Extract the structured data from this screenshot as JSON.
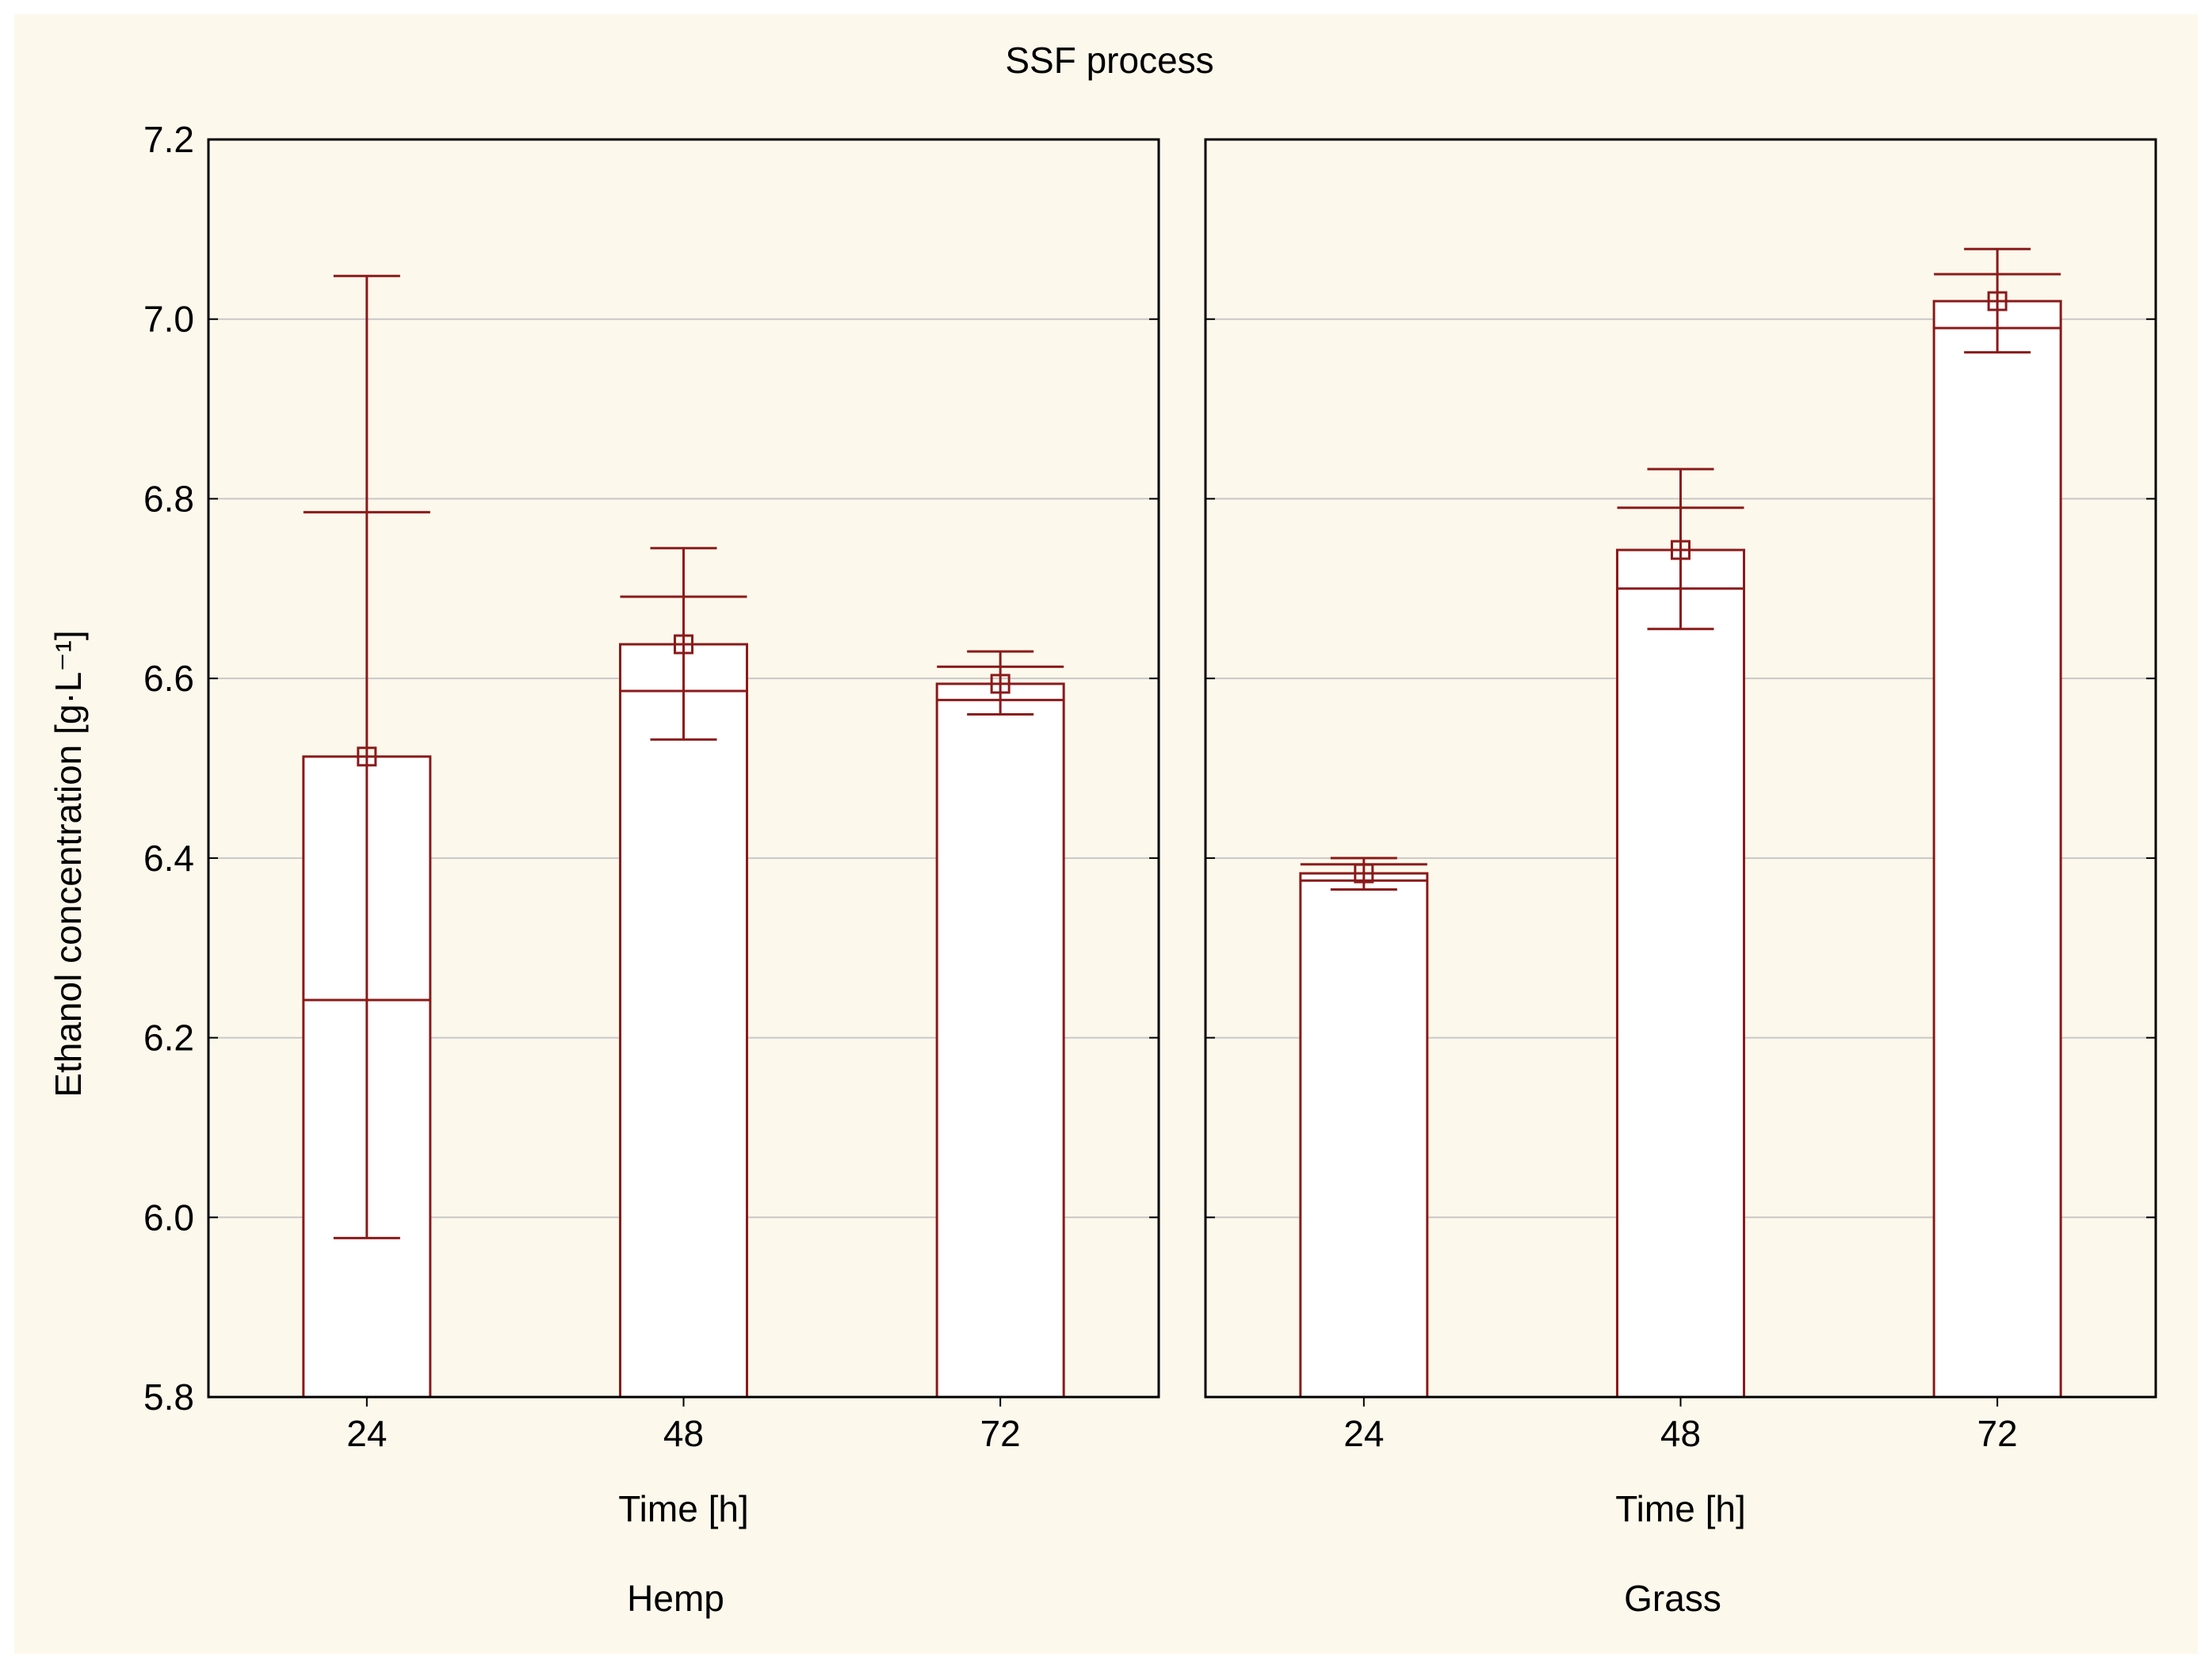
{
  "chart_data": {
    "type": "bar",
    "title": "SSF process",
    "ylabel": "Ethanol concentration [g·L⁻¹]",
    "ylim": [
      5.8,
      7.2
    ],
    "yticks": [
      "7.2",
      "7.0",
      "6.8",
      "6.6",
      "6.4",
      "6.2",
      "6.0",
      "5.8"
    ],
    "ytick_values": [
      7.2,
      7.0,
      6.8,
      6.6,
      6.4,
      6.2,
      6.0,
      5.8
    ],
    "grid": true,
    "panels": [
      {
        "group_label": "Hemp",
        "xlabel": "Time [h]",
        "categories": [
          "24",
          "48",
          "72"
        ],
        "values": [
          6.513,
          6.638,
          6.594
        ],
        "se_low": [
          6.242,
          6.586,
          6.576
        ],
        "se_high": [
          6.785,
          6.691,
          6.613
        ],
        "ci_low": [
          5.977,
          6.532,
          6.56
        ],
        "ci_high": [
          7.048,
          6.745,
          6.63
        ]
      },
      {
        "group_label": "Grass",
        "xlabel": "Time [h]",
        "categories": [
          "24",
          "48",
          "72"
        ],
        "values": [
          6.383,
          6.743,
          7.02
        ],
        "se_low": [
          6.375,
          6.7,
          6.99
        ],
        "se_high": [
          6.393,
          6.79,
          7.05
        ],
        "ci_low": [
          6.365,
          6.655,
          6.963
        ],
        "ci_high": [
          6.4,
          6.833,
          7.078
        ]
      }
    ],
    "colors": {
      "background": "#fdf8ec",
      "bar_stroke": "#8b1a1a",
      "grid": "#c8c8c8",
      "axis": "#000000"
    }
  }
}
